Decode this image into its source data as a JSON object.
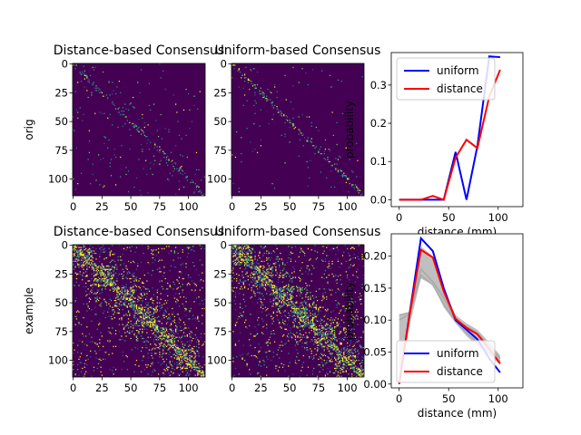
{
  "figure": {
    "rows": [
      {
        "row_label": "orig",
        "heatmaps": [
          {
            "title": "Distance-based Consensus",
            "density": 0.03,
            "pattern": "sparse"
          },
          {
            "title": "Uniform-based Consensus",
            "density": 0.02,
            "pattern": "sparse"
          }
        ]
      },
      {
        "row_label": "example",
        "heatmaps": [
          {
            "title": "Distance-based Consensus",
            "density": 0.22,
            "pattern": "dense"
          },
          {
            "title": "Uniform-based Consensus",
            "density": 0.22,
            "pattern": "dense"
          }
        ]
      }
    ],
    "heatmap_ticks": [
      "0",
      "25",
      "50",
      "75",
      "100"
    ],
    "heatmap_tick_values": [
      0,
      25,
      50,
      75,
      100
    ],
    "heatmap_size": 115,
    "colors": {
      "heatmap_bg": "#440154",
      "heatmap_low": "#3b528b",
      "heatmap_mid": "#21918c",
      "heatmap_high": "#5ec962",
      "heatmap_top": "#fde725",
      "uniform": "#0000ff",
      "distance": "#ff0000",
      "band": "#bfbfbf",
      "band_lines": "#a8a8a8"
    }
  },
  "chart_data": [
    {
      "type": "line",
      "position": "top-right",
      "title": "",
      "xlabel": "distance (mm)",
      "ylabel": "probability",
      "xlim": [
        -8,
        125
      ],
      "ylim": [
        -0.018,
        0.385
      ],
      "xticks": [
        0,
        50,
        100
      ],
      "xtick_labels": [
        "0",
        "50",
        "100"
      ],
      "yticks": [
        0.0,
        0.1,
        0.2,
        0.3
      ],
      "ytick_labels": [
        "0.0",
        "0.1",
        "0.2",
        "0.3"
      ],
      "legend_position": "top-left",
      "series": [
        {
          "name": "uniform",
          "color": "#0000ff",
          "x": [
            0,
            11,
            22,
            34,
            45,
            57,
            68,
            79,
            91,
            102
          ],
          "y": [
            0,
            0,
            0,
            0,
            0,
            0.125,
            0,
            0.14,
            0.375,
            0.373
          ]
        },
        {
          "name": "distance",
          "color": "#ff0000",
          "x": [
            0,
            11,
            22,
            34,
            45,
            57,
            68,
            79,
            91,
            102
          ],
          "y": [
            0,
            0,
            0,
            0.01,
            0,
            0.11,
            0.157,
            0.135,
            0.27,
            0.34
          ]
        }
      ]
    },
    {
      "type": "line",
      "position": "bottom-right",
      "title": "",
      "xlabel": "distance (mm)",
      "ylabel": "probability",
      "xlim": [
        -8,
        125
      ],
      "ylim": [
        -0.006,
        0.235
      ],
      "xticks": [
        0,
        50,
        100
      ],
      "xtick_labels": [
        "0",
        "50",
        "100"
      ],
      "yticks": [
        0.0,
        0.05,
        0.1,
        0.15,
        0.2
      ],
      "ytick_labels": [
        "0.00",
        "0.05",
        "0.10",
        "0.15",
        "0.20"
      ],
      "legend_position": "bottom-left",
      "band": {
        "x": [
          0,
          11,
          22,
          34,
          45,
          57,
          68,
          79,
          91,
          102
        ],
        "lower": [
          0.005,
          0.095,
          0.165,
          0.155,
          0.12,
          0.095,
          0.075,
          0.06,
          0.045,
          0.03
        ],
        "upper": [
          0.108,
          0.112,
          0.215,
          0.2,
          0.145,
          0.108,
          0.095,
          0.085,
          0.065,
          0.045
        ]
      },
      "gray_lines": [
        {
          "x": [
            0,
            11,
            22,
            34,
            45,
            57,
            68,
            79,
            91,
            102
          ],
          "y": [
            0.108,
            0.112,
            0.18,
            0.16,
            0.135,
            0.1,
            0.09,
            0.08,
            0.06,
            0.04
          ]
        },
        {
          "x": [
            0,
            11,
            22,
            34,
            45,
            57,
            68,
            79,
            91,
            102
          ],
          "y": [
            0.1,
            0.11,
            0.17,
            0.155,
            0.125,
            0.098,
            0.08,
            0.065,
            0.05,
            0.035
          ]
        }
      ],
      "series": [
        {
          "name": "uniform",
          "color": "#0000ff",
          "x": [
            0,
            11,
            22,
            34,
            45,
            57,
            68,
            79,
            91,
            102
          ],
          "y": [
            0,
            0.115,
            0.228,
            0.208,
            0.15,
            0.1,
            0.085,
            0.07,
            0.04,
            0.018
          ]
        },
        {
          "name": "distance",
          "color": "#ff0000",
          "x": [
            0,
            11,
            22,
            34,
            45,
            57,
            68,
            79,
            91,
            102
          ],
          "y": [
            0,
            0.113,
            0.21,
            0.198,
            0.145,
            0.102,
            0.088,
            0.078,
            0.055,
            0.032
          ]
        }
      ]
    }
  ]
}
